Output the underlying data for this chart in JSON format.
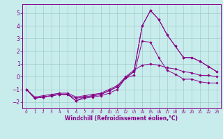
{
  "xlabel": "Windchill (Refroidissement éolien,°C)",
  "background_color": "#c8ecec",
  "grid_color": "#a0cccc",
  "line_color": "#880088",
  "xlim": [
    -0.5,
    23.5
  ],
  "ylim": [
    -2.5,
    5.7
  ],
  "xticks": [
    0,
    1,
    2,
    3,
    4,
    5,
    6,
    7,
    8,
    9,
    10,
    11,
    12,
    13,
    14,
    15,
    16,
    17,
    18,
    19,
    20,
    21,
    22,
    23
  ],
  "yticks": [
    -2,
    -1,
    0,
    1,
    2,
    3,
    4,
    5
  ],
  "x": [
    0,
    1,
    2,
    3,
    4,
    5,
    6,
    7,
    8,
    9,
    10,
    11,
    12,
    13,
    14,
    15,
    16,
    17,
    18,
    19,
    20,
    21,
    22,
    23
  ],
  "lines": [
    [
      -1.0,
      -1.7,
      -1.6,
      -1.5,
      -1.4,
      -1.4,
      -1.9,
      -1.7,
      -1.6,
      -1.5,
      -1.3,
      -1.0,
      -0.1,
      0.4,
      4.0,
      5.2,
      4.5,
      3.3,
      2.4,
      1.5,
      1.5,
      1.2,
      0.8,
      0.4
    ],
    [
      -1.0,
      -1.7,
      -1.6,
      -1.5,
      -1.4,
      -1.4,
      -1.7,
      -1.6,
      -1.5,
      -1.4,
      -1.1,
      -0.8,
      -0.1,
      0.1,
      2.8,
      2.7,
      1.5,
      0.5,
      0.2,
      -0.2,
      -0.2,
      -0.4,
      -0.5,
      -0.5
    ],
    [
      -1.0,
      -1.7,
      -1.6,
      -1.5,
      -1.4,
      -1.4,
      -1.9,
      -1.6,
      -1.5,
      -1.4,
      -1.1,
      -0.8,
      -0.1,
      0.4,
      4.0,
      5.2,
      4.5,
      3.3,
      2.4,
      1.5,
      1.5,
      1.2,
      0.8,
      0.4
    ],
    [
      -1.0,
      -1.6,
      -1.5,
      -1.4,
      -1.3,
      -1.3,
      -1.6,
      -1.5,
      -1.4,
      -1.3,
      -1.0,
      -0.7,
      0.0,
      0.5,
      0.9,
      1.0,
      0.9,
      0.7,
      0.6,
      0.4,
      0.3,
      0.1,
      0.1,
      0.0
    ]
  ],
  "xlabel_fontsize": 5.5,
  "tick_fontsize": 5.0
}
